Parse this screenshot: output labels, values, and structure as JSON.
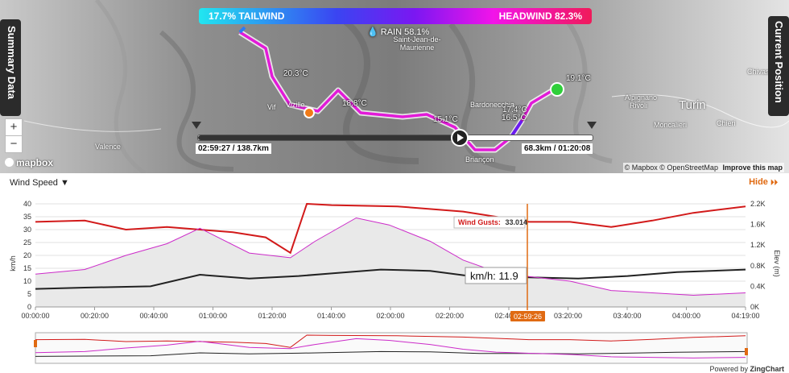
{
  "map": {
    "summary_tab": "Summary Data",
    "current_position_tab": "Current Position",
    "zoom_in": "+",
    "zoom_out": "−",
    "mapbox_logo": "mapbox",
    "attribution": "© Mapbox © OpenStreetMap",
    "improve_link": "Improve this map",
    "wind_legend": {
      "tailwind": "17.7% TAILWIND",
      "headwind": "HEADWIND 82.3%",
      "rain": "RAIN 58.1%"
    },
    "places": [
      "Saint-Jean-de-Maurienne",
      "Valence",
      "Vif",
      "Vizille",
      "Bardonecchia",
      "Briançon",
      "Turin",
      "Moncalieri",
      "Chieri",
      "Rivoli",
      "Chivasso",
      "Alpignano"
    ],
    "temps": [
      "19.1°C",
      "17.4°C",
      "16.5°C",
      "15.1°C",
      "18.8°C",
      "20.3°C"
    ],
    "timeline": {
      "left_label": "02:59:27 / 138.7km",
      "right_label": "68.3km / 01:20:08"
    }
  },
  "chart": {
    "selector_label": "Wind Speed",
    "hide_label": "Hide",
    "y_left_label": "km/h",
    "y_right_label": "Elev (m)",
    "y_left_ticks": [
      "40",
      "35",
      "30",
      "25",
      "20",
      "15",
      "10",
      "5",
      "0"
    ],
    "y_right_ticks": [
      "2.2K",
      "1.6K",
      "1.2K",
      "0.8K",
      "0.4K",
      "0K"
    ],
    "x_ticks": [
      "00:00:00",
      "00:20:00",
      "00:40:00",
      "01:00:00",
      "01:20:00",
      "01:40:00",
      "02:00:00",
      "02:20:00",
      "02:40:00",
      "03:20:00",
      "03:40:00",
      "04:00:00",
      "04:19:00"
    ],
    "cursor_time": "02:59:26",
    "tooltip_gust_label": "Wind Gusts:",
    "tooltip_gust_value": "33.014",
    "tooltip_speed": "km/h: 11.9",
    "powered_by": "Powered by",
    "powered_brand": "ZingChart"
  },
  "chart_data": {
    "type": "line",
    "x_unit": "hours",
    "xlim": [
      0,
      4.317
    ],
    "ylim_left": [
      0,
      40
    ],
    "ylim_right": [
      0,
      2200
    ],
    "series": [
      {
        "name": "Wind Gusts",
        "color": "#d21a1a",
        "axis": "left",
        "x": [
          0,
          0.3,
          0.55,
          0.8,
          1.0,
          1.2,
          1.4,
          1.55,
          1.65,
          1.8,
          2.2,
          2.6,
          2.9,
          3.0,
          3.25,
          3.5,
          3.75,
          4.0,
          4.317
        ],
        "y": [
          33,
          33.5,
          30,
          31,
          30,
          29,
          27,
          21,
          40,
          39.5,
          39,
          37,
          34,
          33,
          33,
          31,
          33.5,
          36.5,
          39
        ]
      },
      {
        "name": "Wind Speed",
        "color": "#222222",
        "axis": "left",
        "x": [
          0,
          0.3,
          0.7,
          1.0,
          1.3,
          1.6,
          1.8,
          2.1,
          2.4,
          2.7,
          3.0,
          3.3,
          3.6,
          3.9,
          4.317
        ],
        "y": [
          7,
          7.5,
          8,
          12.5,
          11,
          12,
          13,
          14.5,
          14,
          11.5,
          11.5,
          11,
          12,
          13.5,
          14.5
        ]
      },
      {
        "name": "Elevation",
        "color": "#cc2bc9",
        "axis": "right",
        "x": [
          0,
          0.3,
          0.55,
          0.8,
          1.0,
          1.3,
          1.55,
          1.7,
          1.95,
          2.15,
          2.4,
          2.6,
          2.8,
          3.0,
          3.25,
          3.5,
          3.75,
          4.0,
          4.317
        ],
        "y": [
          700,
          800,
          1100,
          1350,
          1680,
          1150,
          1050,
          1400,
          1900,
          1750,
          1400,
          1000,
          750,
          650,
          550,
          350,
          300,
          250,
          300
        ]
      }
    ]
  }
}
